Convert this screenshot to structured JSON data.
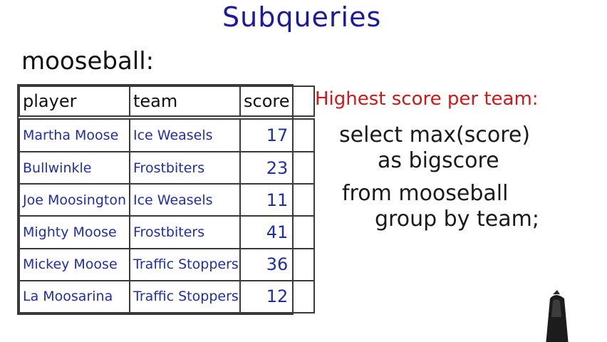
{
  "title": "Subqueries",
  "table": {
    "name": "mooseball:",
    "columns": [
      "player",
      "team",
      "score"
    ],
    "rows": [
      {
        "player": "Martha Moose",
        "team": "Ice Weasels",
        "score": "17"
      },
      {
        "player": "Bullwinkle",
        "team": "Frostbiters",
        "score": "23"
      },
      {
        "player": "Joe Moosington",
        "team": "Ice Weasels",
        "score": "11"
      },
      {
        "player": "Mighty Moose",
        "team": "Frostbiters",
        "score": "41"
      },
      {
        "player": "Mickey Moose",
        "team": "Traffic Stoppers",
        "score": "36"
      },
      {
        "player": "La Moosarina",
        "team": "Traffic Stoppers",
        "score": "12"
      }
    ]
  },
  "query": {
    "heading": "Highest score per team:",
    "lines": [
      "select max(score)",
      "as bigscore",
      "from mooseball",
      "group by team;"
    ]
  },
  "colors": {
    "title": "#1a1a9c",
    "table_text": "#1f2fa8",
    "heading": "#d01818",
    "ink": "#1a1a1a"
  },
  "icons": {
    "marker": "marker-pen-icon"
  }
}
